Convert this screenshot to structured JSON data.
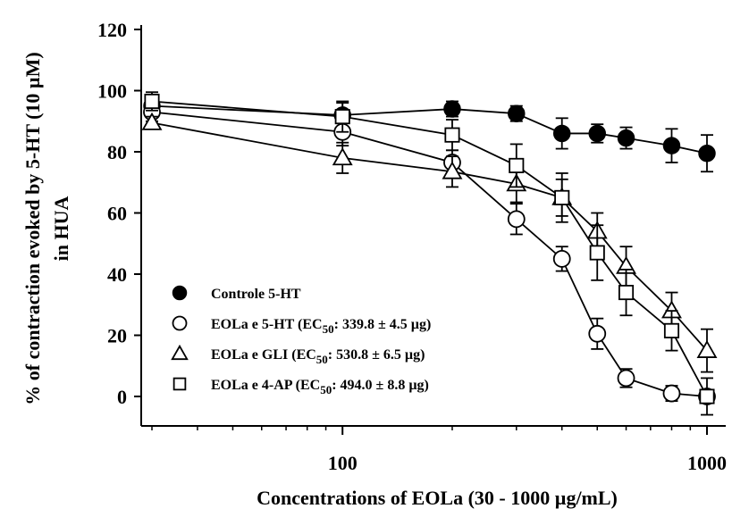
{
  "chart_data": {
    "type": "scatter",
    "title": "",
    "xlabel": "Concentrations of EOLa (30 - 1000 µg/mL)",
    "ylabel_lines": [
      "% of contraction evoked by 5-HT (10 µM)",
      "in HUA"
    ],
    "xscale": "log",
    "xlim": [
      30,
      1000
    ],
    "ylim": [
      0,
      120
    ],
    "x_ticks": [
      100,
      1000
    ],
    "y_ticks": [
      0,
      20,
      40,
      60,
      80,
      100,
      120
    ],
    "grid": false,
    "legend_position": "lower-left",
    "series": [
      {
        "name": "Controle 5-HT",
        "marker": "filled-circle",
        "x": [
          30,
          100,
          200,
          300,
          400,
          500,
          600,
          800,
          1000
        ],
        "y": [
          95,
          92,
          94,
          92.5,
          86,
          86,
          84.5,
          82,
          79.5
        ],
        "error": [
          3,
          4,
          2.5,
          2.5,
          5,
          3,
          3.5,
          5.5,
          6
        ]
      },
      {
        "name": "EOLa e 5-HT",
        "legend_suffix": ": 339.8 ± 4.5 µg)",
        "marker": "open-circle",
        "x": [
          30,
          100,
          200,
          300,
          400,
          500,
          600,
          800,
          1000
        ],
        "y": [
          93,
          86.5,
          76.5,
          58,
          45,
          20.5,
          6,
          1,
          0
        ],
        "error": [
          3,
          4.5,
          4,
          5,
          4,
          5,
          3,
          2.5,
          2
        ]
      },
      {
        "name": "EOLa e GLI",
        "legend_suffix": ": 530.8 ± 6.5 µg)",
        "marker": "open-triangle",
        "x": [
          30,
          100,
          200,
          300,
          400,
          500,
          600,
          800,
          1000
        ],
        "y": [
          89.5,
          78,
          73.5,
          69.5,
          65,
          54,
          42.5,
          28,
          15
        ],
        "error": [
          2,
          5,
          5,
          6,
          8,
          6,
          6.5,
          6,
          7
        ]
      },
      {
        "name": "EOLa e 4-AP",
        "legend_suffix": ": 494.0 ± 8.8 µg)",
        "marker": "open-square",
        "x": [
          30,
          100,
          200,
          300,
          400,
          500,
          600,
          800,
          1000
        ],
        "y": [
          96.5,
          91.5,
          85.5,
          75.5,
          65,
          47,
          34,
          21.5,
          0
        ],
        "error": [
          3,
          5,
          5,
          7,
          6,
          9,
          7.5,
          6.5,
          6
        ]
      }
    ],
    "legend_ec_prefix": "EC",
    "legend_ec_subscript": "50"
  }
}
